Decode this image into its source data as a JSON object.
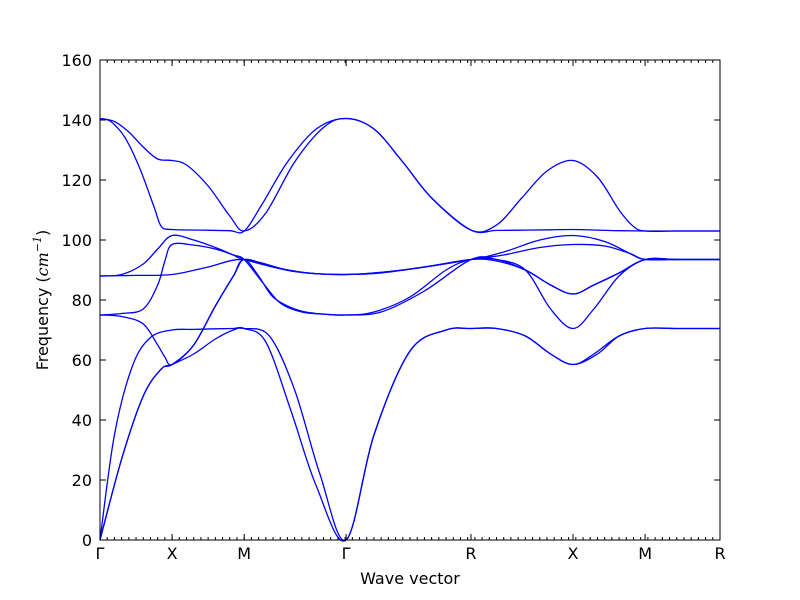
{
  "chart_data": {
    "type": "line",
    "xlabel": "Wave vector",
    "ylabel": "Frequency",
    "ylabel_unit": {
      "open": "(",
      "base": "cm",
      "superscript": "−1",
      "close": ")"
    },
    "ylim": [
      0,
      160
    ],
    "yticks": [
      0,
      20,
      40,
      60,
      80,
      100,
      120,
      140,
      160
    ],
    "xlim": [
      0,
      8.6
    ],
    "xticks": [
      {
        "label": "Γ",
        "value": 0
      },
      {
        "label": "X",
        "value": 1
      },
      {
        "label": "M",
        "value": 2
      },
      {
        "label": "Γ",
        "value": 3.414
      },
      {
        "label": "R",
        "value": 5.146
      },
      {
        "label": "X",
        "value": 6.561
      },
      {
        "label": "M",
        "value": 7.561
      },
      {
        "label": "R",
        "value": 8.6
      }
    ],
    "grid": false,
    "line_color": "#0000ff",
    "series": [
      {
        "x": [
          0,
          0.3,
          0.6,
          0.85,
          1,
          1.3,
          1.6,
          1.85,
          2,
          2.35,
          2.7,
          3.05,
          3.414,
          3.8,
          4.3,
          4.8,
          5.146,
          5.5,
          5.9,
          6.25,
          6.561,
          6.85,
          7.2,
          7.561,
          8.0,
          8.6
        ],
        "y": [
          0,
          27,
          48,
          57,
          58.5,
          62,
          67,
          70,
          70.5,
          68,
          50,
          22,
          0,
          35,
          63,
          70,
          70.5,
          70.5,
          68,
          62,
          58.5,
          62,
          68,
          70.5,
          70.5,
          70.5
        ]
      },
      {
        "x": [
          0,
          0.2,
          0.45,
          0.7,
          1,
          1.3,
          1.6,
          1.85,
          2,
          2.3,
          2.65,
          3.0,
          3.414,
          3.8,
          4.3,
          4.8,
          5.146,
          5.5,
          5.9,
          6.25,
          6.561,
          6.9,
          7.2,
          7.561,
          8.0,
          8.6
        ],
        "y": [
          0,
          35,
          58,
          67.5,
          70,
          70.2,
          70.4,
          70.5,
          70.5,
          66,
          43,
          18,
          0,
          35,
          63,
          70,
          70.5,
          70.5,
          68,
          62,
          58.5,
          62,
          68,
          70.5,
          70.5,
          70.5
        ]
      },
      {
        "x": [
          0,
          0.3,
          0.6,
          0.85,
          1,
          1.3,
          1.6,
          1.85,
          2,
          2.2,
          2.4,
          2.7,
          3.0,
          3.414,
          3.8,
          4.3,
          4.8,
          5.146,
          5.5,
          5.9,
          6.25,
          6.561,
          6.85,
          7.2,
          7.561,
          8.0,
          8.6
        ],
        "y": [
          0,
          27,
          48,
          57,
          58.5,
          65,
          78,
          88,
          93.5,
          88,
          81,
          77,
          75.5,
          75,
          76,
          81,
          90,
          93.5,
          93.5,
          90,
          85,
          82,
          85,
          89,
          93.5,
          93.5,
          93.5
        ]
      },
      {
        "x": [
          0,
          0.3,
          0.6,
          0.8,
          0.9,
          1,
          1.3,
          1.6,
          1.85,
          2,
          2.4,
          2.9,
          3.414,
          3.9,
          4.5,
          5.146,
          5.5,
          5.9,
          6.25,
          6.561,
          6.85,
          7.2,
          7.561,
          8.0,
          8.6
        ],
        "y": [
          75,
          74.5,
          72,
          65,
          61,
          58.5,
          65,
          78,
          88,
          93.5,
          91,
          89,
          88.5,
          89,
          91,
          93.5,
          93,
          90,
          85,
          82,
          85,
          89,
          93.5,
          93.5,
          93.5
        ]
      },
      {
        "x": [
          0,
          0.3,
          0.6,
          0.8,
          0.9,
          1,
          1.3,
          1.6,
          1.85,
          2,
          2.25,
          2.5,
          2.8,
          3.1,
          3.414,
          3.9,
          4.5,
          5.146,
          5.5,
          5.9,
          6.25,
          6.561,
          6.85,
          7.2,
          7.561,
          8.0,
          8.6
        ],
        "y": [
          75,
          75.5,
          77,
          85,
          93,
          98.5,
          98.3,
          97,
          95,
          93.5,
          86,
          79,
          76,
          75.3,
          75,
          76,
          83,
          93.5,
          93.5,
          90,
          77,
          70.5,
          77,
          88,
          93.5,
          93.5,
          93.5
        ]
      },
      {
        "x": [
          0,
          0.5,
          1,
          1.5,
          2,
          2.7,
          3.414,
          4.2,
          5.146,
          5.6,
          6.1,
          6.561,
          7.0,
          7.35,
          7.561,
          8.0,
          8.6
        ],
        "y": [
          88,
          88.2,
          88.5,
          91,
          93.5,
          89.5,
          88.5,
          90,
          93.5,
          95,
          97.5,
          98.5,
          98,
          95.5,
          93.5,
          93.5,
          93.5
        ]
      },
      {
        "x": [
          0,
          0.3,
          0.6,
          0.8,
          1,
          1.3,
          1.6,
          1.85,
          2,
          2.7,
          3.414,
          4.2,
          5.146,
          5.6,
          6.1,
          6.561,
          7.0,
          7.35,
          7.561,
          8.0,
          8.6
        ],
        "y": [
          88,
          88.5,
          92,
          97,
          101.5,
          100,
          97.5,
          95,
          93.5,
          89.5,
          88.5,
          90,
          93.5,
          96,
          100,
          101.5,
          99.5,
          95.5,
          93.5,
          93.5,
          93.5
        ]
      },
      {
        "x": [
          0,
          0.15,
          0.35,
          0.55,
          0.75,
          0.85,
          1,
          1.4,
          1.8,
          2,
          2.25,
          2.6,
          3.0,
          3.414,
          3.8,
          4.2,
          4.6,
          5.146,
          5.5,
          5.9,
          6.25,
          6.561,
          6.9,
          7.2,
          7.561,
          8.0,
          8.6
        ],
        "y": [
          140.5,
          139.5,
          134,
          124,
          111,
          104.5,
          103.5,
          103.3,
          103.1,
          103,
          112,
          126,
          137,
          140.5,
          137,
          126,
          114,
          103.3,
          103.2,
          103.3,
          103.4,
          103.5,
          103.3,
          103.1,
          103,
          103,
          103
        ]
      },
      {
        "x": [
          0,
          0.2,
          0.4,
          0.6,
          0.8,
          1,
          1.2,
          1.5,
          1.8,
          2,
          2.3,
          2.7,
          3.1,
          3.414,
          3.8,
          4.2,
          4.6,
          5.146,
          5.5,
          5.85,
          6.2,
          6.561,
          6.9,
          7.2,
          7.4,
          7.561,
          8.0,
          8.6
        ],
        "y": [
          140.5,
          139.5,
          136,
          131,
          127,
          126.5,
          125,
          118,
          108,
          103,
          109,
          126,
          137.5,
          140.5,
          137,
          126,
          114,
          103.3,
          105,
          114,
          123,
          126.5,
          121,
          110,
          104.5,
          103,
          103,
          103
        ]
      }
    ]
  }
}
